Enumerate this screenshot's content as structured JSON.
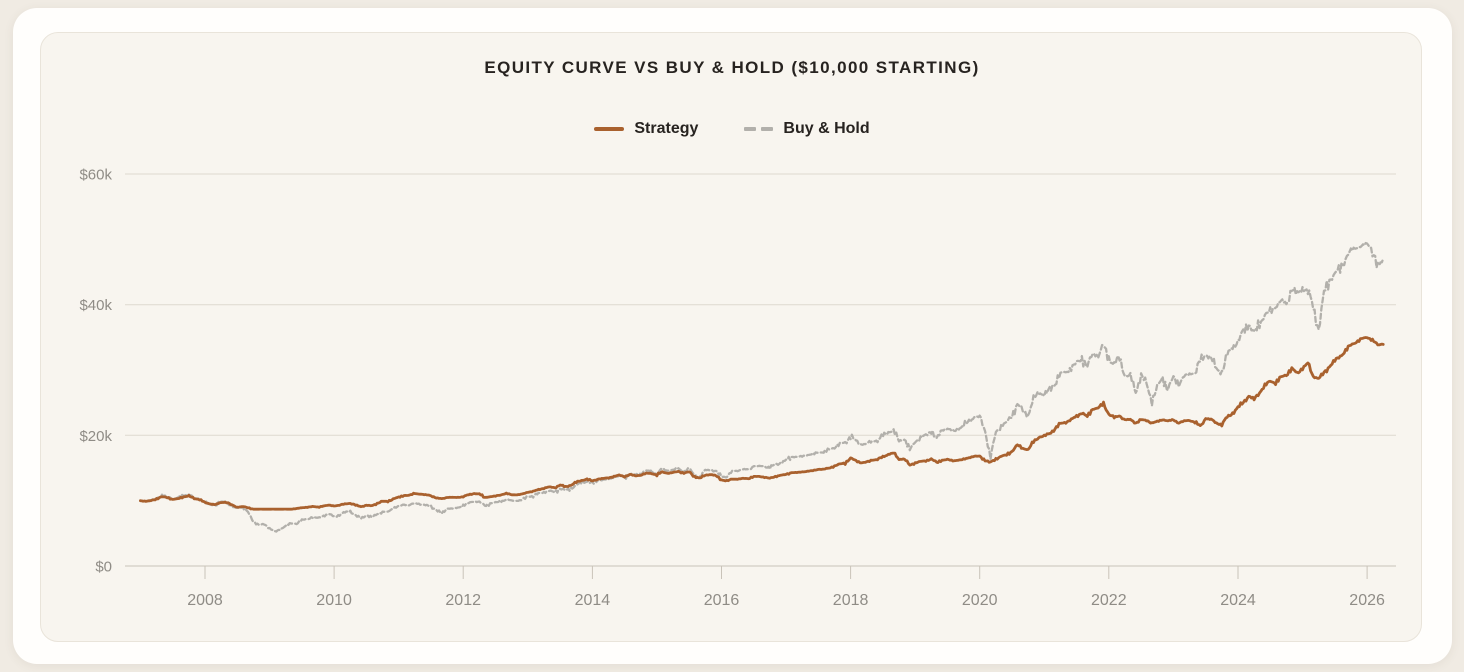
{
  "chart_data": {
    "type": "line",
    "title": "EQUITY CURVE VS BUY & HOLD ($10,000 STARTING)",
    "units": "USD thousands",
    "starting_value_k": 10,
    "x_start": 2007.0,
    "x_end": 2026.25,
    "points_per_year": 12,
    "xlim": [
      2006.9,
      2026.45
    ],
    "ylim_k": [
      0,
      62
    ],
    "grid": "horizontal",
    "legend_position": "top-center",
    "x_axis": {
      "ticks": [
        2008,
        2010,
        2012,
        2014,
        2016,
        2018,
        2020,
        2022,
        2024,
        2026
      ]
    },
    "y_axis": {
      "ticks": [
        {
          "value": 0,
          "label": "$0"
        },
        {
          "value": 20,
          "label": "$20k"
        },
        {
          "value": 40,
          "label": "$40k"
        },
        {
          "value": 60,
          "label": "$60k"
        }
      ]
    },
    "style": {
      "page_background": "#f0ebe3",
      "card_background": "#fffefc",
      "plot_background": "#f8f5ef",
      "plot_border": "#e9e4da",
      "grid_color": "#ded9cf",
      "axis_color": "#c9c3b9",
      "tick_label_color": "#8f8c86",
      "title_color": "#272320"
    },
    "series": [
      {
        "id": "strategy",
        "name": "Strategy",
        "color": "#a9612e",
        "line_style": "solid",
        "width": 2.8,
        "noise_rel": 0.014,
        "seeds": [
          1.7,
          3.9,
          0.4
        ],
        "values_k": [
          10,
          9.9,
          10,
          10.3,
          10.6,
          10.5,
          10.2,
          10.3,
          10.6,
          10.7,
          10.3,
          10.2,
          9.7,
          9.5,
          9.4,
          9.7,
          9.8,
          9.3,
          9,
          9.1,
          8.9,
          8.7,
          8.7,
          8.7,
          8.7,
          8.7,
          8.7,
          8.7,
          8.7,
          8.8,
          8.9,
          9,
          9.1,
          9,
          9.2,
          9.3,
          9.2,
          9.3,
          9.5,
          9.6,
          9.3,
          9.1,
          9.3,
          9.2,
          9.6,
          9.9,
          9.9,
          10.3,
          10.5,
          10.8,
          10.8,
          11.1,
          11,
          10.9,
          10.8,
          10.4,
          10.3,
          10.5,
          10.5,
          10.5,
          10.6,
          10.9,
          11.1,
          11,
          10.5,
          10.6,
          10.7,
          10.9,
          11.1,
          10.9,
          10.9,
          11,
          11.3,
          11.4,
          11.7,
          11.9,
          12.1,
          12,
          12.4,
          12.1,
          12.4,
          12.8,
          13.1,
          13.3,
          13,
          13.3,
          13.4,
          13.5,
          13.7,
          13.9,
          13.7,
          14,
          13.8,
          13.9,
          14.2,
          14.2,
          13.9,
          14.4,
          14.2,
          14.3,
          14.5,
          14.2,
          14.4,
          13.7,
          13.4,
          13.9,
          14,
          13.8,
          13.2,
          13,
          13.3,
          13.3,
          13.4,
          13.4,
          13.7,
          13.7,
          13.6,
          13.4,
          13.7,
          13.9,
          14,
          14.3,
          14.3,
          14.4,
          14.5,
          14.6,
          14.8,
          14.8,
          15,
          15.3,
          15.6,
          15.8,
          16.5,
          16.1,
          15.8,
          15.9,
          16.2,
          16.3,
          16.7,
          17.1,
          17.3,
          16.3,
          16.4,
          15.4,
          15.8,
          16,
          16.1,
          16.4,
          15.8,
          16.2,
          16.3,
          16.1,
          16.2,
          16.3,
          16.6,
          16.8,
          16.8,
          16.2,
          15.8,
          16.4,
          16.8,
          17,
          17.6,
          18.5,
          18,
          17.8,
          19,
          19.7,
          19.9,
          20.3,
          21,
          21.8,
          22,
          22.4,
          22.9,
          23.5,
          22.8,
          24,
          24.2,
          24.8,
          23.3,
          22.7,
          23,
          22.4,
          22.4,
          21.9,
          22.4,
          22.3,
          21.9,
          22.1,
          22.4,
          22.2,
          22.4,
          21.9,
          22.2,
          22.3,
          22,
          21.4,
          22.6,
          22.4,
          21.9,
          21.6,
          22.8,
          23.4,
          24.2,
          25.1,
          26,
          25.5,
          26.6,
          27.6,
          28.3,
          28,
          28.9,
          29.3,
          30.2,
          29.5,
          30.3,
          31,
          29,
          28.7,
          29.5,
          30.6,
          31.4,
          32.1,
          33,
          33.8,
          34.3,
          34.8,
          35,
          34.6,
          33.8,
          34
        ]
      },
      {
        "id": "buy-hold",
        "name": "Buy & Hold",
        "color": "#b2b0ab",
        "line_style": "dashed",
        "dash": "5 3.2",
        "width": 2.3,
        "noise_rel": 0.026,
        "seeds": [
          0.8,
          2.1,
          4.5
        ],
        "values_k": [
          10,
          9.9,
          10,
          10.4,
          10.8,
          10.6,
          10.3,
          10.4,
          10.8,
          10.9,
          10.4,
          10.3,
          9.7,
          9.4,
          9.3,
          9.8,
          9.9,
          9,
          8.9,
          9,
          8.2,
          6.8,
          6.3,
          6.4,
          5.8,
          5.2,
          5.6,
          6.2,
          6.5,
          6.5,
          7,
          7.2,
          7.5,
          7.3,
          7.7,
          7.9,
          7.6,
          7.8,
          8.2,
          8.4,
          7.7,
          7.3,
          7.8,
          7.4,
          8,
          8.3,
          8.3,
          8.9,
          9.1,
          9.4,
          9.3,
          9.6,
          9.5,
          9.3,
          9.1,
          8.6,
          8,
          8.8,
          8.8,
          8.9,
          9.3,
          9.6,
          9.9,
          9.8,
          9.2,
          9.6,
          9.7,
          9.9,
          10.2,
          10,
          10,
          10.1,
          10.6,
          10.7,
          11.1,
          11.3,
          11.5,
          11.3,
          11.9,
          11.5,
          11.9,
          12.4,
          12.7,
          13,
          12.6,
          13.1,
          13.2,
          13.3,
          13.6,
          13.8,
          13.6,
          14.1,
          13.9,
          14.2,
          14.6,
          14.5,
          14.1,
          14.8,
          14.6,
          14.7,
          14.9,
          14.5,
          14.8,
          13.9,
          13.5,
          14.7,
          14.7,
          14.4,
          13.7,
          13.6,
          14.5,
          14.6,
          14.8,
          14.8,
          15.3,
          15.3,
          15.3,
          15,
          15.5,
          15.8,
          16.1,
          16.7,
          16.7,
          16.8,
          17,
          17.1,
          17.4,
          17.4,
          17.8,
          18.2,
          18.7,
          18.9,
          19.9,
          19.1,
          18.6,
          18.7,
          19.1,
          19.2,
          19.9,
          20.5,
          20.6,
          19.1,
          19.5,
          17.7,
          19.1,
          19.6,
          20,
          20.8,
          19.4,
          20.8,
          21,
          20.6,
          21,
          21.4,
          22.2,
          22.8,
          22.8,
          20.8,
          16.5,
          20.5,
          21.5,
          21.9,
          23.1,
          24.7,
          23.7,
          23.1,
          25.5,
          26.5,
          26.2,
          26.9,
          28,
          29.5,
          29.7,
          30.3,
          31,
          31.9,
          30.4,
          32.5,
          32.2,
          33.6,
          31.9,
          30.8,
          31.9,
          29.1,
          29.1,
          26.7,
          29.1,
          27.9,
          25.3,
          27.3,
          28.8,
          27.1,
          28.8,
          28,
          29,
          29.4,
          29.5,
          31.4,
          32.4,
          31.8,
          30.2,
          29.6,
          32.2,
          33.6,
          34.2,
          35.9,
          37.1,
          35.5,
          37.2,
          38.5,
          38.9,
          39.8,
          40.6,
          40.2,
          42.5,
          41.5,
          42.6,
          42,
          39.6,
          36.2,
          41.7,
          43.8,
          44.7,
          45.6,
          47.2,
          48.3,
          48.7,
          49,
          49.3,
          48.5,
          45.6,
          46.8
        ]
      }
    ]
  }
}
